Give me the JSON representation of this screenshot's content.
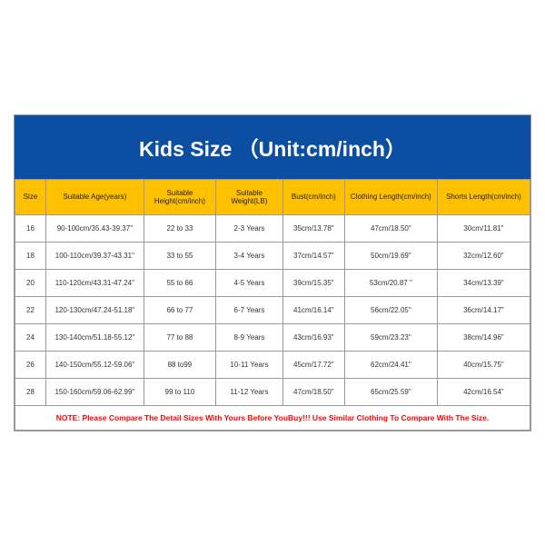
{
  "title": "Kids Size （Unit:cm/inch）",
  "title_bg": "#0b4ea2",
  "title_color": "#ffffff",
  "header_bg": "#ffc000",
  "header_color": "#222222",
  "row_bg": "#ffffff",
  "note_color": "#ff0000",
  "columns": [
    "Size",
    "Suitable Age(years)",
    "Suitable Height(cm/inch)",
    "Suitable Weight(LB)",
    "Bust(cm/inch)",
    "Clothing Length(cm/inch)",
    "Shorts Length(cm/inch)"
  ],
  "rows": [
    [
      "16",
      "90-100cm/35.43-39.37\"",
      "22 to 33",
      "2-3 Years",
      "35cm/13.78\"",
      "47cm/18.50\"",
      "30cm/11.81\""
    ],
    [
      "18",
      "100-110cm/39.37-43.31\"",
      "33 to 55",
      "3-4 Years",
      "37cm/14.57\"",
      "50cm/19.69\"",
      "32cm/12.60\""
    ],
    [
      "20",
      "110-120cm/43.31-47.24\"",
      "55 to 66",
      "4-5 Years",
      "39cm/15.35\"",
      "53cm/20.87 \"",
      "34cm/13.39\""
    ],
    [
      "22",
      "120-130cm/47.24-51.18\"",
      "66 to 77",
      "6-7 Years",
      "41cm/16.14\"",
      "56cm/22.05\"",
      "36cm/14.17\""
    ],
    [
      "24",
      "130-140cm/51.18-55.12\"",
      "77 to 88",
      "8-9 Years",
      "43cm/16.93\"",
      "59cm/23.23\"",
      "38cm/14.96\""
    ],
    [
      "26",
      "140-150cm/55.12-59.06\"",
      "88 to99",
      "10-11 Years",
      "45cm/17.72\"",
      "62cm/24.41\"",
      "40cm/15.75\""
    ],
    [
      "28",
      "150-160cm/59.06-62.99\"",
      "99 to 110",
      "11-12 Years",
      "47cm/18.50\"",
      "65cm/25.59\"",
      "42cm/16.54\""
    ]
  ],
  "note": "NOTE: Please Compare The Detail Sizes With Yours Before YouBuy!!! Use Similar Clothing To Compare With The Size."
}
